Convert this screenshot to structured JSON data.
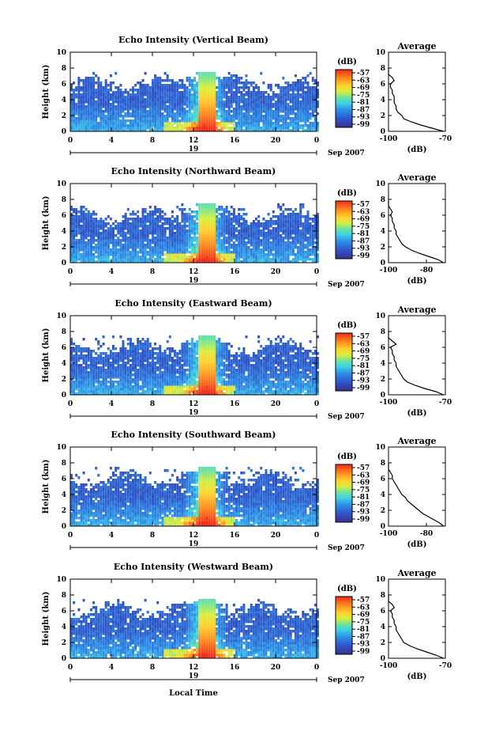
{
  "chart_data": [
    {
      "type": "heatmap",
      "title": "Echo Intensity (Vertical Beam)",
      "ylabel": "Height (km)",
      "xlabel": "",
      "x_ticks": [
        "0",
        "4",
        "8",
        "12",
        "16",
        "20",
        "0"
      ],
      "y_ticks": [
        "0",
        "2",
        "4",
        "6",
        "8",
        "10"
      ],
      "date_label": "19",
      "date_suffix": "Sep 2007",
      "xlim": [
        0,
        24
      ],
      "ylim": [
        0,
        10
      ],
      "colorbar": {
        "unit": "(dB)",
        "ticks": [
          "-57",
          "-63",
          "-69",
          "-75",
          "-81",
          "-87",
          "-93",
          "-99"
        ],
        "range": [
          -99,
          -57
        ]
      },
      "average": {
        "title": "Average",
        "xlabel": "(dB)",
        "xlim": [
          -100,
          -70
        ],
        "x_ticks": [
          "-100",
          "-70"
        ],
        "profile": [
          [
            0,
            -71
          ],
          [
            0.4,
            -77
          ],
          [
            0.8,
            -83
          ],
          [
            1.2,
            -88
          ],
          [
            1.6,
            -92
          ],
          [
            2.0,
            -93
          ],
          [
            2.4,
            -95
          ],
          [
            2.8,
            -96
          ],
          [
            3.2,
            -96
          ],
          [
            3.6,
            -97
          ],
          [
            4.0,
            -97
          ],
          [
            4.4,
            -97
          ],
          [
            4.8,
            -98
          ],
          [
            5.2,
            -98
          ],
          [
            5.6,
            -99
          ],
          [
            6.0,
            -99
          ],
          [
            6.4,
            -97
          ],
          [
            6.8,
            -98
          ],
          [
            7.2,
            -100
          ],
          [
            7.6,
            -100
          ],
          [
            8.0,
            -100
          ]
        ]
      }
    },
    {
      "type": "heatmap",
      "title": "Echo Intensity (Northward Beam)",
      "ylabel": "Height (km)",
      "xlabel": "",
      "x_ticks": [
        "0",
        "4",
        "8",
        "12",
        "16",
        "20",
        "0"
      ],
      "y_ticks": [
        "0",
        "2",
        "4",
        "6",
        "8",
        "10"
      ],
      "date_label": "19",
      "date_suffix": "Sep 2007",
      "xlim": [
        0,
        24
      ],
      "ylim": [
        0,
        10
      ],
      "colorbar": {
        "unit": "(dB)",
        "ticks": [
          "-57",
          "-63",
          "-69",
          "-75",
          "-81",
          "-87",
          "-93",
          "-99"
        ],
        "range": [
          -99,
          -57
        ]
      },
      "average": {
        "title": "Average",
        "xlabel": "(dB)",
        "xlim": [
          -100,
          -70
        ],
        "x_ticks": [
          "-100",
          "-80"
        ],
        "profile": [
          [
            0,
            -71
          ],
          [
            0.4,
            -74
          ],
          [
            0.8,
            -79
          ],
          [
            1.2,
            -84
          ],
          [
            1.6,
            -88
          ],
          [
            2.0,
            -91
          ],
          [
            2.4,
            -93
          ],
          [
            2.8,
            -94
          ],
          [
            3.2,
            -95
          ],
          [
            3.6,
            -96
          ],
          [
            4.0,
            -96
          ],
          [
            4.4,
            -97
          ],
          [
            4.8,
            -97
          ],
          [
            5.2,
            -98
          ],
          [
            5.6,
            -98
          ],
          [
            6.0,
            -99
          ],
          [
            6.4,
            -98
          ],
          [
            6.8,
            -99
          ],
          [
            7.2,
            -100
          ],
          [
            7.6,
            -100
          ],
          [
            8.0,
            -100
          ]
        ]
      }
    },
    {
      "type": "heatmap",
      "title": "Echo Intensity (Eastward Beam)",
      "ylabel": "Height (km)",
      "xlabel": "",
      "x_ticks": [
        "0",
        "4",
        "8",
        "12",
        "16",
        "20",
        "0"
      ],
      "y_ticks": [
        "0",
        "2",
        "4",
        "6",
        "8",
        "10"
      ],
      "date_label": "19",
      "date_suffix": "Sep 2007",
      "xlim": [
        0,
        24
      ],
      "ylim": [
        0,
        10
      ],
      "colorbar": {
        "unit": "(dB)",
        "ticks": [
          "-57",
          "-63",
          "-69",
          "-75",
          "-81",
          "-87",
          "-93",
          "-99"
        ],
        "range": [
          -99,
          -57
        ]
      },
      "average": {
        "title": "Average",
        "xlabel": "(dB)",
        "xlim": [
          -100,
          -70
        ],
        "x_ticks": [
          "-100",
          "-70"
        ],
        "profile": [
          [
            0,
            -71
          ],
          [
            0.4,
            -75
          ],
          [
            0.8,
            -81
          ],
          [
            1.2,
            -86
          ],
          [
            1.6,
            -90
          ],
          [
            2.0,
            -92
          ],
          [
            2.4,
            -93
          ],
          [
            2.8,
            -94
          ],
          [
            3.2,
            -95
          ],
          [
            3.6,
            -96
          ],
          [
            4.0,
            -96
          ],
          [
            4.4,
            -97
          ],
          [
            4.8,
            -97
          ],
          [
            5.2,
            -98
          ],
          [
            5.6,
            -98
          ],
          [
            6.0,
            -99
          ],
          [
            6.4,
            -96
          ],
          [
            6.8,
            -98
          ],
          [
            7.2,
            -100
          ],
          [
            7.6,
            -100
          ],
          [
            8.0,
            -100
          ]
        ]
      }
    },
    {
      "type": "heatmap",
      "title": "Echo Intensity (Southward Beam)",
      "ylabel": "Height (km)",
      "xlabel": "",
      "x_ticks": [
        "0",
        "4",
        "8",
        "12",
        "16",
        "20",
        "0"
      ],
      "y_ticks": [
        "0",
        "2",
        "4",
        "6",
        "8",
        "10"
      ],
      "date_label": "19",
      "date_suffix": "Sep 2007",
      "xlim": [
        0,
        24
      ],
      "ylim": [
        0,
        10
      ],
      "colorbar": {
        "unit": "(dB)",
        "ticks": [
          "-57",
          "-63",
          "-69",
          "-75",
          "-81",
          "-87",
          "-93",
          "-99"
        ],
        "range": [
          -99,
          -57
        ]
      },
      "average": {
        "title": "Average",
        "xlabel": "(dB)",
        "xlim": [
          -100,
          -70
        ],
        "x_ticks": [
          "-100",
          "-80"
        ],
        "profile": [
          [
            0,
            -71
          ],
          [
            0.4,
            -73
          ],
          [
            0.8,
            -76
          ],
          [
            1.2,
            -79
          ],
          [
            1.6,
            -82
          ],
          [
            2.0,
            -84
          ],
          [
            2.4,
            -86
          ],
          [
            2.8,
            -88
          ],
          [
            3.2,
            -90
          ],
          [
            3.6,
            -91
          ],
          [
            4.0,
            -93
          ],
          [
            4.4,
            -94
          ],
          [
            4.8,
            -95
          ],
          [
            5.2,
            -96
          ],
          [
            5.6,
            -97
          ],
          [
            6.0,
            -98
          ],
          [
            6.4,
            -98
          ],
          [
            6.8,
            -99
          ],
          [
            7.2,
            -100
          ],
          [
            7.6,
            -100
          ],
          [
            8.0,
            -100
          ]
        ]
      }
    },
    {
      "type": "heatmap",
      "title": "Echo Intensity (Westward Beam)",
      "ylabel": "Height (km)",
      "xlabel": "Local Time",
      "x_ticks": [
        "0",
        "4",
        "8",
        "12",
        "16",
        "20",
        "0"
      ],
      "y_ticks": [
        "0",
        "2",
        "4",
        "6",
        "8",
        "10"
      ],
      "date_label": "19",
      "date_suffix": "Sep 2007",
      "xlim": [
        0,
        24
      ],
      "ylim": [
        0,
        10
      ],
      "colorbar": {
        "unit": "(dB)",
        "ticks": [
          "-57",
          "-63",
          "-69",
          "-75",
          "-81",
          "-87",
          "-93",
          "-99"
        ],
        "range": [
          -99,
          -57
        ]
      },
      "average": {
        "title": "Average",
        "xlabel": "(dB)",
        "xlim": [
          -100,
          -70
        ],
        "x_ticks": [
          "-100",
          "-70"
        ],
        "profile": [
          [
            0,
            -71
          ],
          [
            0.4,
            -75
          ],
          [
            0.8,
            -80
          ],
          [
            1.2,
            -85
          ],
          [
            1.6,
            -89
          ],
          [
            2.0,
            -92
          ],
          [
            2.4,
            -93
          ],
          [
            2.8,
            -94
          ],
          [
            3.2,
            -95
          ],
          [
            3.6,
            -96
          ],
          [
            4.0,
            -96
          ],
          [
            4.4,
            -97
          ],
          [
            4.8,
            -97
          ],
          [
            5.2,
            -98
          ],
          [
            5.6,
            -98
          ],
          [
            6.0,
            -99
          ],
          [
            6.4,
            -97
          ],
          [
            6.8,
            -98
          ],
          [
            7.2,
            -100
          ],
          [
            7.6,
            -100
          ],
          [
            8.0,
            -100
          ]
        ]
      }
    }
  ]
}
